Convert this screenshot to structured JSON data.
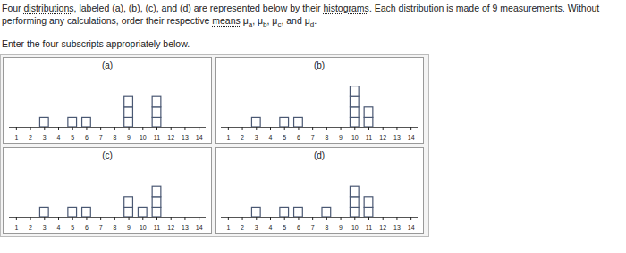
{
  "question": {
    "segments": [
      {
        "t": "Four "
      },
      {
        "t": "distributions",
        "link": true
      },
      {
        "t": ", labeled (a), (b), (c), and (d) are represented below by their "
      },
      {
        "t": "histograms",
        "link": true
      },
      {
        "t": ". Each distribution is made of 9 measurements. Without performing any calculations, order their respective "
      },
      {
        "t": "means",
        "link": true
      },
      {
        "t": " "
      },
      {
        "t": "μ",
        "sub": "a"
      },
      {
        "t": ", "
      },
      {
        "t": "μ",
        "sub": "b"
      },
      {
        "t": ", "
      },
      {
        "t": "μ",
        "sub": "c"
      },
      {
        "t": ", and "
      },
      {
        "t": "μ",
        "sub": "d"
      },
      {
        "t": "."
      }
    ],
    "instruction": "Enter the four subscripts appropriately below."
  },
  "chart_data": [
    {
      "type": "histogram",
      "title": "(a)",
      "color": "#4a5873",
      "bins": [
        0.5,
        1.5,
        2.5,
        3.5,
        4.5,
        5.5,
        6.5,
        7.5,
        8.5,
        9.5,
        10.5,
        11.5,
        12.5,
        13.5,
        14.5
      ],
      "counts": [
        0,
        0,
        1,
        0,
        1,
        1,
        0,
        0,
        3,
        0,
        3,
        0,
        0,
        0
      ],
      "xlim": [
        0.5,
        14.5
      ],
      "xticks": [
        1,
        2,
        3,
        4,
        5,
        6,
        7,
        8,
        9,
        10,
        11,
        12,
        13,
        14
      ],
      "ylim": [
        0,
        5
      ],
      "tick_labels": "x"
    },
    {
      "type": "histogram",
      "title": "(b)",
      "color": "#4a5873",
      "bins": [
        0.5,
        1.5,
        2.5,
        3.5,
        4.5,
        5.5,
        6.5,
        7.5,
        8.5,
        9.5,
        10.5,
        11.5,
        12.5,
        13.5,
        14.5
      ],
      "counts": [
        0,
        0,
        1,
        0,
        1,
        1,
        0,
        0,
        0,
        4,
        2,
        0,
        0,
        0
      ],
      "xlim": [
        0.5,
        14.5
      ],
      "xticks": [
        1,
        2,
        3,
        4,
        5,
        6,
        7,
        8,
        9,
        10,
        11,
        12,
        13,
        14
      ],
      "ylim": [
        0,
        5
      ],
      "tick_labels": "x"
    },
    {
      "type": "histogram",
      "title": "(c)",
      "color": "#4a5873",
      "bins": [
        0.5,
        1.5,
        2.5,
        3.5,
        4.5,
        5.5,
        6.5,
        7.5,
        8.5,
        9.5,
        10.5,
        11.5,
        12.5,
        13.5,
        14.5
      ],
      "counts": [
        0,
        0,
        1,
        0,
        1,
        1,
        0,
        0,
        2,
        1,
        3,
        0,
        0,
        0
      ],
      "xlim": [
        0.5,
        14.5
      ],
      "xticks": [
        1,
        2,
        3,
        4,
        5,
        6,
        7,
        8,
        9,
        10,
        11,
        12,
        13,
        14
      ],
      "ylim": [
        0,
        5
      ],
      "tick_labels": "x"
    },
    {
      "type": "histogram",
      "title": "(d)",
      "color": "#4a5873",
      "bins": [
        0.5,
        1.5,
        2.5,
        3.5,
        4.5,
        5.5,
        6.5,
        7.5,
        8.5,
        9.5,
        10.5,
        11.5,
        12.5,
        13.5,
        14.5
      ],
      "counts": [
        0,
        0,
        1,
        0,
        1,
        1,
        0,
        1,
        0,
        3,
        2,
        0,
        0,
        0
      ],
      "xlim": [
        0.5,
        14.5
      ],
      "xticks": [
        1,
        2,
        3,
        4,
        5,
        6,
        7,
        8,
        9,
        10,
        11,
        12,
        13,
        14
      ],
      "ylim": [
        0,
        5
      ],
      "tick_labels": "x"
    }
  ]
}
